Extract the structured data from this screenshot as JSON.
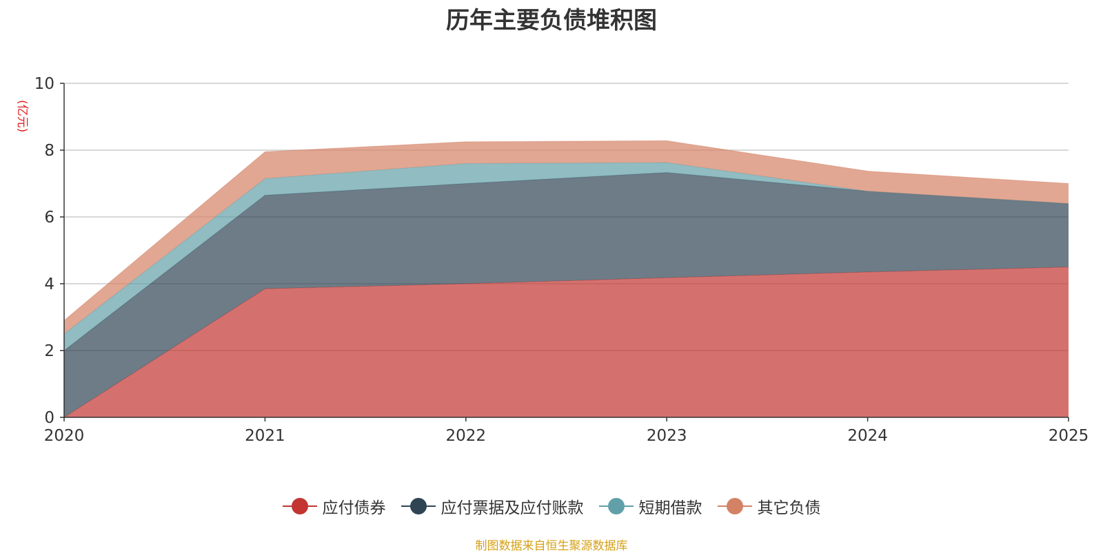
{
  "chart_data": {
    "type": "area",
    "stacked": true,
    "title": "历年主要负债堆积图",
    "unit_label": "(亿元)",
    "source_note": "制图数据来自恒生聚源数据库",
    "categories": [
      "2020",
      "2021",
      "2022",
      "2023",
      "2024",
      "2025"
    ],
    "ylim": [
      0,
      10
    ],
    "yticks": [
      0,
      2,
      4,
      6,
      8,
      10
    ],
    "grid": true,
    "legend_position": "bottom",
    "series": [
      {
        "name": "应付债券",
        "color": "#c23531",
        "values": [
          0.0,
          3.85,
          4.0,
          4.18,
          4.35,
          4.5
        ]
      },
      {
        "name": "应付票据及应付账款",
        "color": "#2f4554",
        "values": [
          2.0,
          2.8,
          3.0,
          3.15,
          2.42,
          1.9
        ]
      },
      {
        "name": "短期借款",
        "color": "#61a0a8",
        "values": [
          0.5,
          0.5,
          0.6,
          0.3,
          0.0,
          0.0
        ]
      },
      {
        "name": "其它负债",
        "color": "#d48265",
        "values": [
          0.4,
          0.8,
          0.65,
          0.65,
          0.6,
          0.6
        ]
      }
    ]
  }
}
